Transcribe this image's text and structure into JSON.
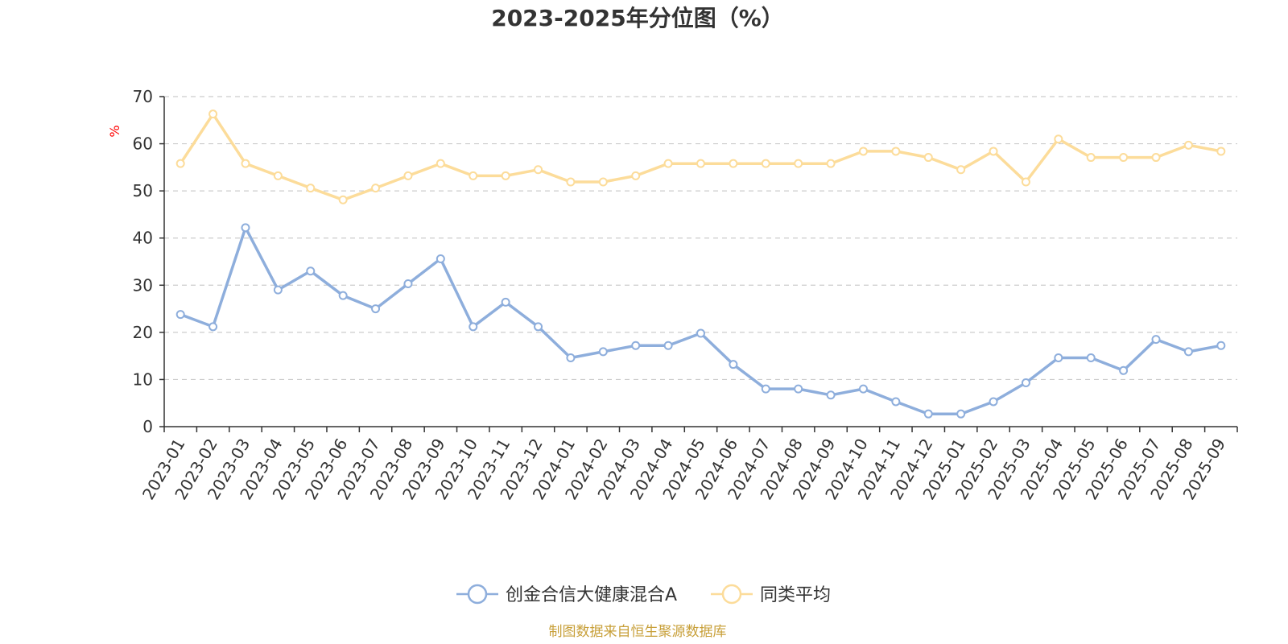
{
  "chart_data": {
    "type": "line",
    "title": "2023-2025年分位图（%）",
    "ylabel": "%",
    "xlabel": "",
    "ylim": [
      0,
      70
    ],
    "yticks": [
      0,
      10,
      20,
      30,
      40,
      50,
      60,
      70
    ],
    "grid": true,
    "legend_position": "bottom",
    "categories": [
      "2023-01",
      "2023-02",
      "2023-03",
      "2023-04",
      "2023-05",
      "2023-06",
      "2023-07",
      "2023-08",
      "2023-09",
      "2023-10",
      "2023-11",
      "2023-12",
      "2024-01",
      "2024-02",
      "2024-03",
      "2024-04",
      "2024-05",
      "2024-06",
      "2024-07",
      "2024-08",
      "2024-09",
      "2024-10",
      "2024-11",
      "2024-12",
      "2025-01",
      "2025-02",
      "2025-03",
      "2025-04",
      "2025-05",
      "2025-06",
      "2025-07",
      "2025-08",
      "2025-09"
    ],
    "series": [
      {
        "name": "创金合信大健康混合A",
        "color": "#8eaedc",
        "values": [
          23.8,
          21.2,
          42.2,
          29.0,
          33.0,
          27.8,
          25.0,
          30.3,
          35.6,
          21.2,
          26.4,
          21.2,
          14.6,
          15.9,
          17.2,
          17.2,
          19.8,
          13.2,
          8.0,
          8.0,
          6.7,
          8.0,
          5.3,
          2.7,
          2.7,
          5.3,
          9.3,
          14.6,
          14.6,
          11.9,
          18.5,
          15.9,
          17.2
        ]
      },
      {
        "name": "同类平均",
        "color": "#fcdc9a",
        "values": [
          55.8,
          66.3,
          55.8,
          53.2,
          50.6,
          48.1,
          50.6,
          53.2,
          55.8,
          53.2,
          53.2,
          54.5,
          51.9,
          51.9,
          53.2,
          55.8,
          55.8,
          55.8,
          55.8,
          55.8,
          55.8,
          58.4,
          58.4,
          57.1,
          54.5,
          58.4,
          51.9,
          61.0,
          57.1,
          57.1,
          57.1,
          59.7,
          58.4
        ]
      }
    ]
  },
  "source_note": "制图数据来自恒生聚源数据库"
}
